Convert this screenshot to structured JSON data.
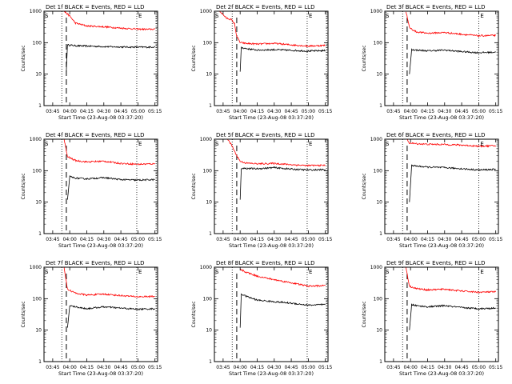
{
  "figure": {
    "x_ticks": [
      "03:45",
      "04:00",
      "04:15",
      "04:30",
      "04:45",
      "05:00",
      "05:15"
    ],
    "y_ticks": [
      "1",
      "10",
      "100",
      "1000"
    ],
    "xlabel": "Start Time (23-Aug-08 03:37:20)",
    "ylabel": "Counts/sec",
    "S_marker": "S",
    "E_marker": "E",
    "colors": {
      "events": "#000000",
      "lld": "#ff0000"
    }
  },
  "chart_data": [
    {
      "type": "line",
      "title": "Det 1f BLACK = Events, RED = LLD",
      "x_ticks": [
        "03:45",
        "04:00",
        "04:15",
        "04:30",
        "04:45",
        "05:00",
        "05:15"
      ],
      "y_ticks": [
        "1",
        "10",
        "100",
        "1000"
      ],
      "yscale": "log",
      "ylim": [
        1,
        1000
      ],
      "xlim_minutes": [
        0,
        100
      ],
      "xlabel": "Start Time (23-Aug-08 03:37:20)",
      "ylabel": "Counts/sec",
      "dotted_lines": [
        "03:53",
        "04:59",
        "05:16"
      ],
      "dashed_line": "03:57",
      "series": [
        {
          "name": "BLACK = Events",
          "color": "black",
          "x": [
            "03:57",
            "03:58",
            "04:05",
            "04:15",
            "04:30",
            "04:45",
            "05:00",
            "05:10",
            "05:15"
          ],
          "y": [
            12,
            85,
            80,
            78,
            75,
            73,
            72,
            72,
            74
          ]
        },
        {
          "name": "RED = LLD",
          "color": "red",
          "x": [
            "03:55",
            "04:00",
            "04:05",
            "04:15",
            "04:30",
            "04:45",
            "05:00",
            "05:10",
            "05:15"
          ],
          "y": [
            1000,
            700,
            420,
            340,
            320,
            290,
            270,
            265,
            270
          ]
        }
      ]
    },
    {
      "type": "line",
      "title": "Det 2f BLACK = Events, RED = LLD",
      "x_ticks": [
        "03:45",
        "04:00",
        "04:15",
        "04:30",
        "04:45",
        "05:00",
        "05:15"
      ],
      "y_ticks": [
        "1",
        "10",
        "100",
        "1000"
      ],
      "yscale": "log",
      "ylim": [
        1,
        1000
      ],
      "xlim_minutes": [
        0,
        100
      ],
      "xlabel": "Start Time (23-Aug-08 03:37:20)",
      "ylabel": "Counts/sec",
      "dotted_lines": [
        "03:53",
        "04:59",
        "05:16"
      ],
      "dashed_line": "03:57",
      "series": [
        {
          "name": "BLACK = Events",
          "color": "black",
          "x": [
            "04:00",
            "04:01",
            "04:05",
            "04:15",
            "04:30",
            "04:45",
            "05:00",
            "05:15"
          ],
          "y": [
            12,
            70,
            65,
            58,
            60,
            57,
            54,
            56
          ]
        },
        {
          "name": "RED = LLD",
          "color": "red",
          "x": [
            "03:42",
            "03:48",
            "03:52",
            "03:55",
            "03:57",
            "04:00",
            "04:05",
            "04:15",
            "04:30",
            "04:45",
            "05:00",
            "05:15"
          ],
          "y": [
            1000,
            600,
            550,
            400,
            160,
            100,
            95,
            90,
            95,
            85,
            78,
            82
          ]
        }
      ]
    },
    {
      "type": "line",
      "title": "Det 3f BLACK = Events, RED = LLD",
      "x_ticks": [
        "03:45",
        "04:00",
        "04:15",
        "04:30",
        "04:45",
        "05:00",
        "05:15"
      ],
      "y_ticks": [
        "1",
        "10",
        "100",
        "1000"
      ],
      "yscale": "log",
      "ylim": [
        1,
        1000
      ],
      "xlim_minutes": [
        0,
        100
      ],
      "xlabel": "Start Time (23-Aug-08 03:37:20)",
      "ylabel": "Counts/sec",
      "dotted_lines": [
        "03:53",
        "05:00"
      ],
      "dashed_line": "03:57",
      "series": [
        {
          "name": "BLACK = Events",
          "color": "black",
          "x": [
            "03:59",
            "04:01",
            "04:05",
            "04:15",
            "04:30",
            "04:45",
            "05:00",
            "05:15"
          ],
          "y": [
            10,
            60,
            58,
            55,
            58,
            52,
            48,
            50
          ]
        },
        {
          "name": "RED = LLD",
          "color": "red",
          "x": [
            "03:56",
            "03:59",
            "04:05",
            "04:15",
            "04:30",
            "04:45",
            "05:00",
            "05:15"
          ],
          "y": [
            1000,
            300,
            220,
            200,
            210,
            185,
            165,
            170
          ]
        }
      ]
    },
    {
      "type": "line",
      "title": "Det 4f BLACK = Events, RED = LLD",
      "x_ticks": [
        "03:45",
        "04:00",
        "04:15",
        "04:30",
        "04:45",
        "05:00",
        "05:15"
      ],
      "y_ticks": [
        "1",
        "10",
        "100",
        "1000"
      ],
      "yscale": "log",
      "ylim": [
        1,
        1000
      ],
      "xlim_minutes": [
        0,
        100
      ],
      "xlabel": "Start Time (23-Aug-08 03:37:20)",
      "ylabel": "Counts/sec",
      "dotted_lines": [
        "03:53",
        "04:59",
        "05:16"
      ],
      "dashed_line": "03:57",
      "series": [
        {
          "name": "BLACK = Events",
          "color": "black",
          "x": [
            "03:58",
            "04:00",
            "04:05",
            "04:15",
            "04:30",
            "04:45",
            "05:00",
            "05:15"
          ],
          "y": [
            12,
            65,
            58,
            55,
            60,
            52,
            50,
            52
          ]
        },
        {
          "name": "RED = LLD",
          "color": "red",
          "x": [
            "03:55",
            "03:58",
            "04:05",
            "04:15",
            "04:30",
            "04:45",
            "05:00",
            "05:15"
          ],
          "y": [
            1000,
            280,
            210,
            190,
            200,
            170,
            160,
            165
          ]
        }
      ]
    },
    {
      "type": "line",
      "title": "Det 5f BLACK = Events, RED = LLD",
      "x_ticks": [
        "03:45",
        "04:00",
        "04:15",
        "04:30",
        "04:45",
        "05:00",
        "05:15"
      ],
      "y_ticks": [
        "1",
        "10",
        "100",
        "1000"
      ],
      "yscale": "log",
      "ylim": [
        1,
        1000
      ],
      "xlim_minutes": [
        0,
        100
      ],
      "xlabel": "Start Time (23-Aug-08 03:37:20)",
      "ylabel": "Counts/sec",
      "dotted_lines": [
        "03:53",
        "04:59",
        "05:16"
      ],
      "dashed_line": "03:57",
      "series": [
        {
          "name": "BLACK = Events",
          "color": "black",
          "x": [
            "04:00",
            "04:01",
            "04:05",
            "04:15",
            "04:30",
            "04:45",
            "05:00",
            "05:15"
          ],
          "y": [
            12,
            120,
            118,
            115,
            125,
            112,
            105,
            108
          ]
        },
        {
          "name": "RED = LLD",
          "color": "red",
          "x": [
            "03:49",
            "03:53",
            "03:56",
            "04:00",
            "04:05",
            "04:15",
            "04:30",
            "04:45",
            "05:00",
            "05:15"
          ],
          "y": [
            1000,
            600,
            350,
            200,
            175,
            165,
            170,
            155,
            145,
            148
          ]
        }
      ]
    },
    {
      "type": "line",
      "title": "Det 6f BLACK = Events, RED = LLD",
      "x_ticks": [
        "03:45",
        "04:00",
        "04:15",
        "04:30",
        "04:45",
        "05:00",
        "05:15"
      ],
      "y_ticks": [
        "1",
        "10",
        "100",
        "1000"
      ],
      "yscale": "log",
      "ylim": [
        1,
        1000
      ],
      "xlim_minutes": [
        0,
        100
      ],
      "xlabel": "Start Time (23-Aug-08 03:37:20)",
      "ylabel": "Counts/sec",
      "dotted_lines": [
        "03:53",
        "05:00"
      ],
      "dashed_line": "03:57",
      "series": [
        {
          "name": "BLACK = Events",
          "color": "black",
          "x": [
            "03:59",
            "04:01",
            "04:05",
            "04:15",
            "04:30",
            "04:45",
            "05:00",
            "05:15"
          ],
          "y": [
            10,
            150,
            140,
            130,
            125,
            115,
            105,
            110
          ]
        },
        {
          "name": "RED = LLD",
          "color": "red",
          "x": [
            "03:57",
            "03:59",
            "04:05",
            "04:15",
            "04:30",
            "04:45",
            "05:00",
            "05:15"
          ],
          "y": [
            1000,
            750,
            720,
            690,
            680,
            650,
            600,
            620
          ]
        }
      ]
    },
    {
      "type": "line",
      "title": "Det 7f BLACK = Events, RED = LLD",
      "x_ticks": [
        "03:45",
        "04:00",
        "04:15",
        "04:30",
        "04:45",
        "05:00",
        "05:15"
      ],
      "y_ticks": [
        "1",
        "10",
        "100",
        "1000"
      ],
      "yscale": "log",
      "ylim": [
        1,
        1000
      ],
      "xlim_minutes": [
        0,
        100
      ],
      "xlabel": "Start Time (23-Aug-08 03:37:20)",
      "ylabel": "Counts/sec",
      "dotted_lines": [
        "03:53",
        "04:59",
        "05:16"
      ],
      "dashed_line": "03:57",
      "series": [
        {
          "name": "BLACK = Events",
          "color": "black",
          "x": [
            "03:58",
            "04:00",
            "04:05",
            "04:15",
            "04:30",
            "04:45",
            "05:00",
            "05:15"
          ],
          "y": [
            12,
            60,
            55,
            48,
            55,
            50,
            46,
            48
          ]
        },
        {
          "name": "RED = LLD",
          "color": "red",
          "x": [
            "03:55",
            "03:58",
            "04:05",
            "04:15",
            "04:30",
            "04:45",
            "05:00",
            "05:15"
          ],
          "y": [
            1000,
            200,
            150,
            130,
            140,
            125,
            115,
            118
          ]
        }
      ]
    },
    {
      "type": "line",
      "title": "Det 8f BLACK = Events, RED = LLD",
      "x_ticks": [
        "03:45",
        "04:00",
        "04:15",
        "04:30",
        "04:45",
        "05:00",
        "05:15"
      ],
      "y_ticks": [
        "1",
        "10",
        "100",
        "1000"
      ],
      "yscale": "log",
      "ylim": [
        1,
        1000
      ],
      "xlim_minutes": [
        0,
        100
      ],
      "xlabel": "Start Time (23-Aug-08 03:37:20)",
      "ylabel": "Counts/sec",
      "dotted_lines": [
        "03:53",
        "04:59",
        "05:16"
      ],
      "dashed_line": "03:57",
      "series": [
        {
          "name": "BLACK = Events",
          "color": "black",
          "x": [
            "04:00",
            "04:01",
            "04:05",
            "04:15",
            "04:30",
            "04:45",
            "05:00",
            "05:15"
          ],
          "y": [
            12,
            140,
            120,
            90,
            80,
            72,
            62,
            65
          ]
        },
        {
          "name": "RED = LLD",
          "color": "red",
          "x": [
            "04:00",
            "04:05",
            "04:15",
            "04:30",
            "04:45",
            "05:00",
            "05:15"
          ],
          "y": [
            850,
            700,
            520,
            400,
            320,
            250,
            260
          ]
        }
      ]
    },
    {
      "type": "line",
      "title": "Det 9f BLACK = Events, RED = LLD",
      "x_ticks": [
        "03:45",
        "04:00",
        "04:15",
        "04:30",
        "04:45",
        "05:00",
        "05:15"
      ],
      "y_ticks": [
        "1",
        "10",
        "100",
        "1000"
      ],
      "yscale": "log",
      "ylim": [
        1,
        1000
      ],
      "xlim_minutes": [
        0,
        100
      ],
      "xlabel": "Start Time (23-Aug-08 03:37:20)",
      "ylabel": "Counts/sec",
      "dotted_lines": [
        "03:53",
        "05:00"
      ],
      "dashed_line": "03:57",
      "series": [
        {
          "name": "BLACK = Events",
          "color": "black",
          "x": [
            "03:59",
            "04:01",
            "04:05",
            "04:15",
            "04:30",
            "04:45",
            "05:00",
            "05:15"
          ],
          "y": [
            10,
            65,
            60,
            55,
            60,
            52,
            48,
            50
          ]
        },
        {
          "name": "RED = LLD",
          "color": "red",
          "x": [
            "03:56",
            "03:59",
            "04:05",
            "04:15",
            "04:30",
            "04:45",
            "05:00",
            "05:15"
          ],
          "y": [
            1000,
            250,
            210,
            190,
            200,
            175,
            160,
            165
          ]
        }
      ]
    }
  ]
}
